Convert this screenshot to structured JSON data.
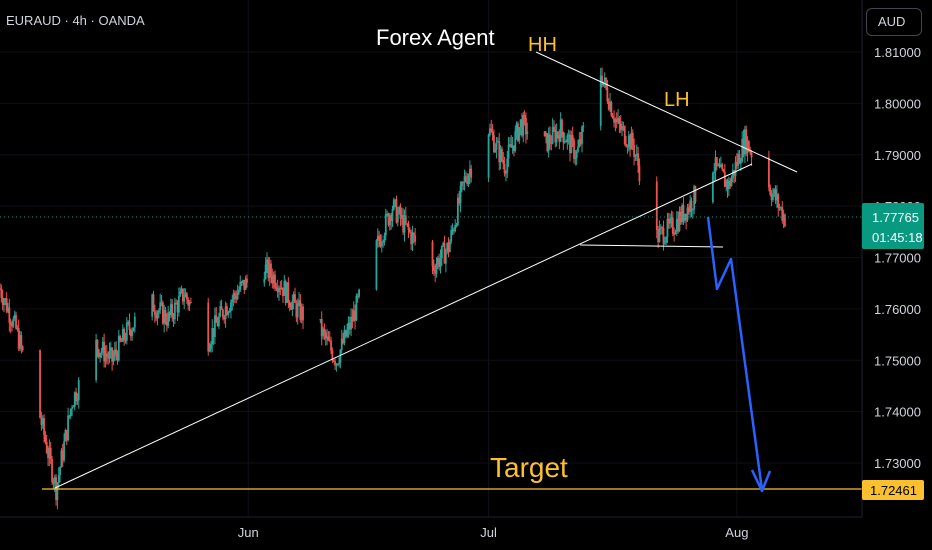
{
  "header": {
    "symbol": "EURAUD · 4h · OANDA",
    "currency": "AUD"
  },
  "colors": {
    "up": "#26a69a",
    "down": "#ef5350",
    "target": "#fbc02d",
    "arrow": "#2962ff",
    "annot": "#ffffff",
    "yellow_text": "#fbc02d",
    "live_tag": "#089981"
  },
  "chart_data": {
    "type": "candlestick",
    "title": "Forex Agent",
    "ylim": [
      1.7205,
      1.8145
    ],
    "y_ticks": [
      1.81,
      1.8,
      1.79,
      1.78,
      1.77,
      1.76,
      1.75,
      1.74,
      1.73
    ],
    "y_tick_labels": [
      "1.81000",
      "1.80000",
      "1.79000",
      "1.78000",
      "1.77000",
      "1.76000",
      "1.75000",
      "1.74000",
      "1.73000"
    ],
    "x_range": [
      "2024-05-01",
      "2024-08-15"
    ],
    "x_ticks": [
      {
        "label": "Jun",
        "date": "2024-06-01"
      },
      {
        "label": "Jul",
        "date": "2024-07-01"
      },
      {
        "label": "Aug",
        "date": "2024-08-01"
      }
    ],
    "close_series": [
      [
        "2024-05-01",
        1.764
      ],
      [
        "2024-05-03",
        1.756
      ],
      [
        "2024-05-06",
        1.739
      ],
      [
        "2024-05-08",
        1.725
      ],
      [
        "2024-05-10",
        1.742
      ],
      [
        "2024-05-13",
        1.753
      ],
      [
        "2024-05-15",
        1.75
      ],
      [
        "2024-05-17",
        1.756
      ],
      [
        "2024-05-20",
        1.761
      ],
      [
        "2024-05-22",
        1.758
      ],
      [
        "2024-05-24",
        1.763
      ],
      [
        "2024-05-27",
        1.754
      ],
      [
        "2024-05-29",
        1.76
      ],
      [
        "2024-05-31",
        1.764
      ],
      [
        "2024-06-03",
        1.768
      ],
      [
        "2024-06-05",
        1.765
      ],
      [
        "2024-06-07",
        1.76
      ],
      [
        "2024-06-10",
        1.756
      ],
      [
        "2024-06-12",
        1.75
      ],
      [
        "2024-06-14",
        1.758
      ],
      [
        "2024-06-17",
        1.772
      ],
      [
        "2024-06-19",
        1.78
      ],
      [
        "2024-06-21",
        1.775
      ],
      [
        "2024-06-24",
        1.768
      ],
      [
        "2024-06-26",
        1.772
      ],
      [
        "2024-06-28",
        1.785
      ],
      [
        "2024-07-01",
        1.795
      ],
      [
        "2024-07-03",
        1.788
      ],
      [
        "2024-07-05",
        1.796
      ],
      [
        "2024-07-08",
        1.792
      ],
      [
        "2024-07-10",
        1.795
      ],
      [
        "2024-07-12",
        1.79
      ],
      [
        "2024-07-15",
        1.806
      ],
      [
        "2024-07-17",
        1.796
      ],
      [
        "2024-07-19",
        1.792
      ],
      [
        "2024-07-22",
        1.774
      ],
      [
        "2024-07-24",
        1.776
      ],
      [
        "2024-07-26",
        1.78
      ],
      [
        "2024-07-29",
        1.788
      ],
      [
        "2024-07-31",
        1.784
      ],
      [
        "2024-08-02",
        1.793
      ],
      [
        "2024-08-05",
        1.784
      ],
      [
        "2024-08-07",
        1.7777
      ]
    ],
    "annotations": {
      "hh": {
        "label": "HH",
        "date": "2024-07-15",
        "price": 1.8145
      },
      "lh": {
        "label": "LH",
        "date": "2024-08-05",
        "price": 1.8035
      },
      "target": {
        "label": "Target",
        "price": 1.72461
      }
    },
    "price_tags": {
      "current": "1.77765",
      "countdown": "01:45:18",
      "target": "1.72461"
    }
  }
}
